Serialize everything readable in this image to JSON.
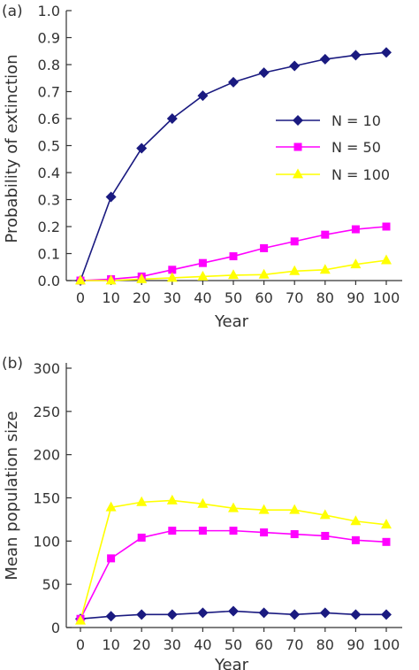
{
  "chart_data": [
    {
      "panel_label": "(a)",
      "type": "line",
      "xlabel": "Year",
      "ylabel": "Probability of extinction",
      "x": [
        0,
        10,
        20,
        30,
        40,
        50,
        60,
        70,
        80,
        90,
        100
      ],
      "xticks": [
        "0",
        "10",
        "20",
        "30",
        "40",
        "50",
        "60",
        "70",
        "80",
        "90",
        "100"
      ],
      "ylim": [
        0,
        1
      ],
      "yticks": [
        "0.0",
        "0.1",
        "0.2",
        "0.3",
        "0.4",
        "0.5",
        "0.6",
        "0.7",
        "0.8",
        "0.9",
        "1.0"
      ],
      "legend": "center-right",
      "series": [
        {
          "name": "N = 10",
          "marker": "diamond",
          "color": "#1a1a80",
          "values": [
            0.0,
            0.31,
            0.49,
            0.6,
            0.685,
            0.735,
            0.77,
            0.795,
            0.82,
            0.835,
            0.845
          ]
        },
        {
          "name": "N = 50",
          "marker": "square",
          "color": "#ff00ff",
          "values": [
            0.0,
            0.005,
            0.015,
            0.04,
            0.065,
            0.09,
            0.12,
            0.145,
            0.17,
            0.19,
            0.2
          ]
        },
        {
          "name": "N = 100",
          "marker": "triangle",
          "color": "#ffff00",
          "values": [
            0.0,
            0.0,
            0.005,
            0.01,
            0.015,
            0.02,
            0.022,
            0.035,
            0.04,
            0.06,
            0.075
          ]
        }
      ]
    },
    {
      "panel_label": "(b)",
      "type": "line",
      "xlabel": "Year",
      "ylabel": "Mean population size",
      "x": [
        0,
        10,
        20,
        30,
        40,
        50,
        60,
        70,
        80,
        90,
        100
      ],
      "xticks": [
        "0",
        "10",
        "20",
        "30",
        "40",
        "50",
        "60",
        "70",
        "80",
        "90",
        "100"
      ],
      "ylim": [
        0,
        300
      ],
      "yticks": [
        "0",
        "50",
        "100",
        "150",
        "200",
        "250",
        "300"
      ],
      "series": [
        {
          "name": "N = 10",
          "marker": "diamond",
          "color": "#1a1a80",
          "values": [
            10,
            13,
            15,
            15,
            17,
            19,
            17,
            15,
            17,
            15,
            15
          ]
        },
        {
          "name": "N = 50",
          "marker": "square",
          "color": "#ff00ff",
          "values": [
            10,
            80,
            104,
            112,
            112,
            112,
            110,
            108,
            106,
            101,
            99
          ]
        },
        {
          "name": "N = 100",
          "marker": "triangle",
          "color": "#ffff00",
          "values": [
            8,
            139,
            145,
            147,
            143,
            138,
            136,
            136,
            130,
            123,
            119
          ]
        }
      ]
    }
  ]
}
